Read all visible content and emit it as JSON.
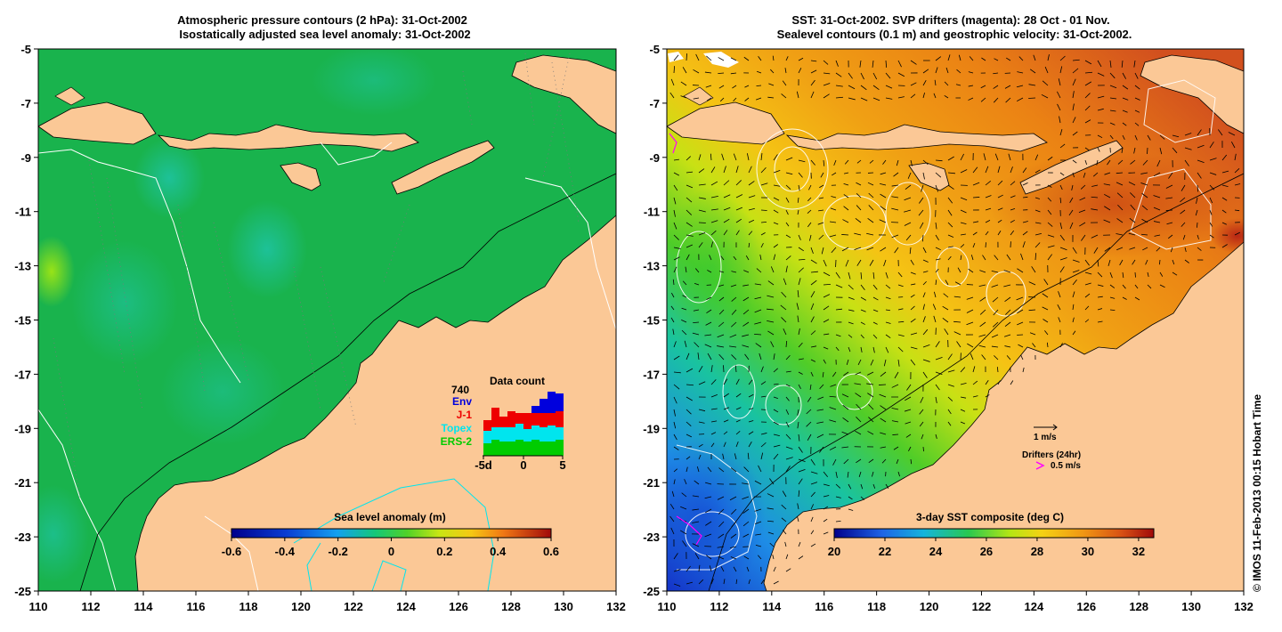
{
  "left_panel": {
    "title_line1": "Atmospheric pressure contours (2 hPa): 31-Oct-2002",
    "title_line2": "Isostatically adjusted sea level anomaly: 31-Oct-2002",
    "colorbar": {
      "title": "Sea level anomaly (m)",
      "tick_labels": [
        "-0.6",
        "-0.4",
        "-0.2",
        "0",
        "0.2",
        "0.4",
        "0.6"
      ],
      "range": [
        -0.6,
        0.6
      ]
    },
    "data_count": {
      "title": "Data count",
      "total": "740",
      "legend": [
        {
          "label": "Env",
          "color": "#0000dd"
        },
        {
          "label": "J-1",
          "color": "#ee0000"
        },
        {
          "label": "Topex",
          "color": "#00e5ee"
        },
        {
          "label": "ERS-2",
          "color": "#00cc00"
        }
      ],
      "x_tick_labels": [
        "-5d",
        "0",
        "5"
      ]
    }
  },
  "right_panel": {
    "title_line1": "SST: 31-Oct-2002. SVP drifters (magenta): 28 Oct - 01 Nov.",
    "title_line2": "Sealevel contours (0.1 m) and geostrophic velocity: 31-Oct-2002.",
    "velocity_scale_label": "1 m/s",
    "drifters_label": "Drifters (24hr)",
    "drifter_speed_label": "0.5 m/s",
    "colorbar": {
      "title": "3-day SST composite (deg C)",
      "tick_labels": [
        "20",
        "22",
        "24",
        "26",
        "28",
        "30",
        "32"
      ],
      "range": [
        20,
        32.6
      ]
    }
  },
  "axes": {
    "lon_tick_labels": [
      "110",
      "112",
      "114",
      "116",
      "118",
      "120",
      "122",
      "124",
      "126",
      "128",
      "130",
      "132"
    ],
    "lat_tick_labels": [
      "-5",
      "-7",
      "-9",
      "-11",
      "-13",
      "-15",
      "-17",
      "-19",
      "-21",
      "-23",
      "-25"
    ]
  },
  "copyright": "© IMOS 11-Feb-2013 00:15 Hobart Time",
  "colors": {
    "land": "#fbc896",
    "sla_ocean": "#19b34d",
    "sst_warm": "#f08c14",
    "sst_cool": "#1e78e6",
    "drifter_magenta": "#ff00ff"
  }
}
